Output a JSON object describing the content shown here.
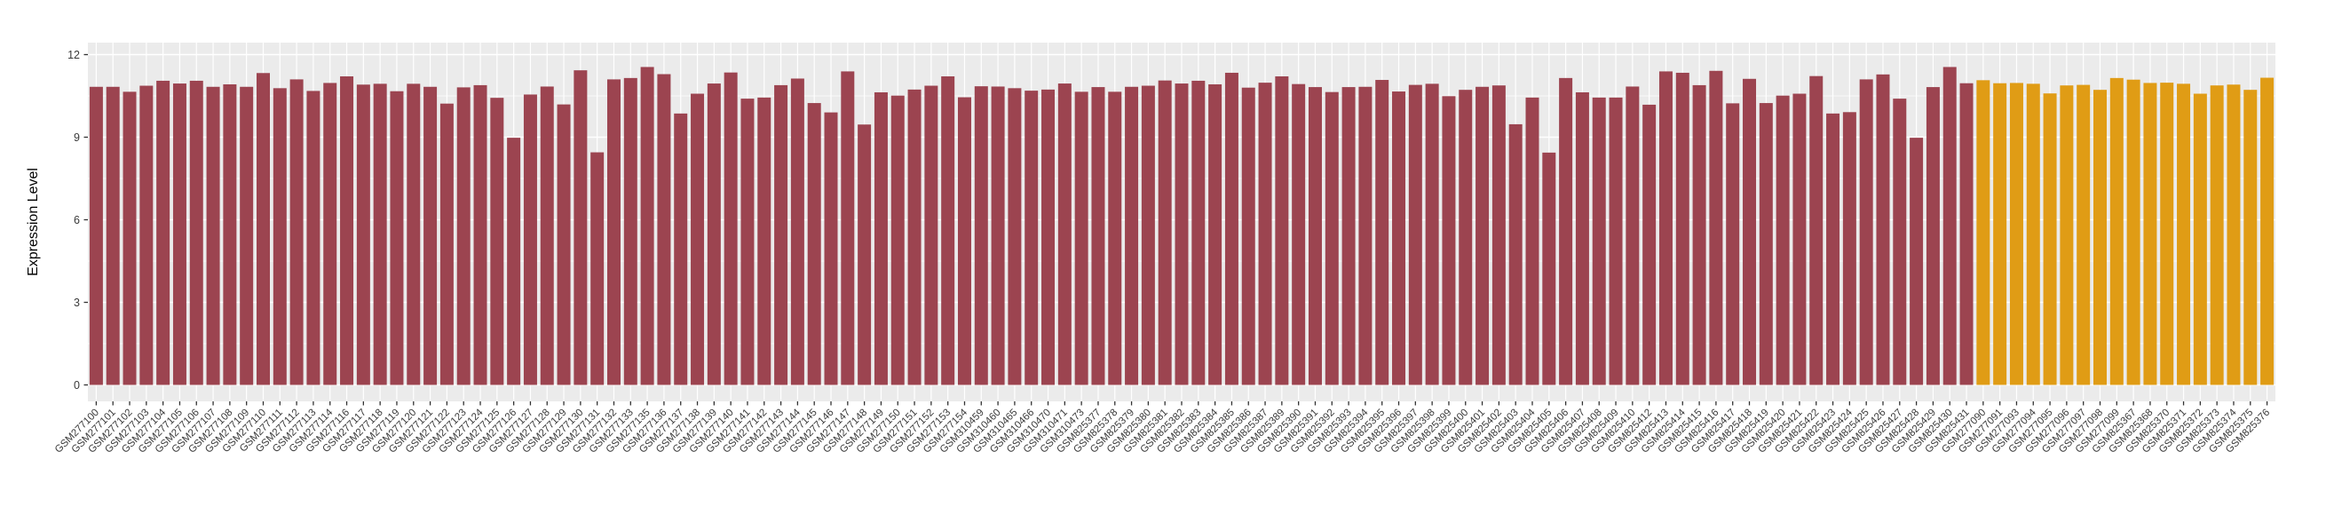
{
  "chart_data": {
    "type": "bar",
    "title": "",
    "ylabel": "Expression Level",
    "xlabel": "",
    "ylim": [
      0,
      12
    ],
    "yticks": [
      0,
      3,
      6,
      9,
      12
    ],
    "yticks_minor": [
      1.5,
      4.5,
      7.5,
      10.5
    ],
    "grid": "on",
    "legend": "none",
    "panel_background": "#EBEBEB",
    "gridline_color": "#FFFFFF",
    "tick_color": "#333333",
    "axis_text_color": "#3a3a3a",
    "groups": [
      {
        "name": "group-1",
        "color": "#9C4450",
        "start_index": 0,
        "end_index": 112
      },
      {
        "name": "group-2",
        "color": "#E09C15",
        "start_index": 113,
        "end_index": 130
      }
    ],
    "categories": [
      "GSM277100",
      "GSM277101",
      "GSM277102",
      "GSM277103",
      "GSM277104",
      "GSM277105",
      "GSM277106",
      "GSM277107",
      "GSM277108",
      "GSM277109",
      "GSM277110",
      "GSM277111",
      "GSM277112",
      "GSM277113",
      "GSM277114",
      "GSM277116",
      "GSM277117",
      "GSM277118",
      "GSM277119",
      "GSM277120",
      "GSM277121",
      "GSM277122",
      "GSM277123",
      "GSM277124",
      "GSM277125",
      "GSM277126",
      "GSM277127",
      "GSM277128",
      "GSM277129",
      "GSM277130",
      "GSM277131",
      "GSM277132",
      "GSM277133",
      "GSM277135",
      "GSM277136",
      "GSM277137",
      "GSM277138",
      "GSM277139",
      "GSM277140",
      "GSM277141",
      "GSM277142",
      "GSM277143",
      "GSM277144",
      "GSM277145",
      "GSM277146",
      "GSM277147",
      "GSM277148",
      "GSM277149",
      "GSM277150",
      "GSM277151",
      "GSM277152",
      "GSM277153",
      "GSM277154",
      "GSM310459",
      "GSM310460",
      "GSM310465",
      "GSM310466",
      "GSM310470",
      "GSM310471",
      "GSM310473",
      "GSM825377",
      "GSM825378",
      "GSM825379",
      "GSM825380",
      "GSM825381",
      "GSM825382",
      "GSM825383",
      "GSM825384",
      "GSM825385",
      "GSM825386",
      "GSM825387",
      "GSM825389",
      "GSM825390",
      "GSM825391",
      "GSM825392",
      "GSM825393",
      "GSM825394",
      "GSM825395",
      "GSM825396",
      "GSM825397",
      "GSM825398",
      "GSM825399",
      "GSM825400",
      "GSM825401",
      "GSM825402",
      "GSM825403",
      "GSM825404",
      "GSM825405",
      "GSM825406",
      "GSM825407",
      "GSM825408",
      "GSM825409",
      "GSM825410",
      "GSM825412",
      "GSM825413",
      "GSM825414",
      "GSM825415",
      "GSM825416",
      "GSM825417",
      "GSM825418",
      "GSM825419",
      "GSM825420",
      "GSM825421",
      "GSM825422",
      "GSM825423",
      "GSM825424",
      "GSM825425",
      "GSM825426",
      "GSM825427",
      "GSM825428",
      "GSM825429",
      "GSM825430",
      "GSM825431",
      "GSM277090",
      "GSM277091",
      "GSM277093",
      "GSM277094",
      "GSM277095",
      "GSM277096",
      "GSM277097",
      "GSM277098",
      "GSM277099",
      "GSM825367",
      "GSM825368",
      "GSM825370",
      "GSM825371",
      "GSM825372",
      "GSM825373",
      "GSM825374",
      "GSM825375",
      "GSM825376"
    ],
    "values": [
      10.83,
      10.83,
      10.65,
      10.87,
      11.05,
      10.95,
      11.05,
      10.83,
      10.92,
      10.83,
      11.33,
      10.78,
      11.1,
      10.68,
      10.97,
      11.21,
      10.91,
      10.94,
      10.67,
      10.94,
      10.83,
      10.22,
      10.81,
      10.89,
      10.43,
      8.98,
      10.55,
      10.84,
      10.19,
      11.43,
      8.45,
      11.1,
      11.15,
      11.55,
      11.29,
      9.86,
      10.58,
      10.95,
      11.35,
      10.4,
      10.44,
      10.89,
      11.13,
      10.24,
      9.9,
      11.39,
      9.46,
      10.63,
      10.51,
      10.73,
      10.87,
      11.21,
      10.45,
      10.85,
      10.84,
      10.78,
      10.69,
      10.73,
      10.95,
      10.65,
      10.82,
      10.65,
      10.83,
      10.87,
      11.06,
      10.95,
      11.05,
      10.92,
      11.34,
      10.8,
      10.98,
      11.21,
      10.93,
      10.82,
      10.64,
      10.82,
      10.83,
      11.08,
      10.66,
      10.9,
      10.94,
      10.49,
      10.72,
      10.83,
      10.88,
      9.47,
      10.44,
      8.44,
      11.15,
      10.63,
      10.44,
      10.44,
      10.84,
      10.18,
      11.39,
      11.34,
      10.89,
      11.41,
      10.23,
      11.12,
      10.24,
      10.51,
      10.58,
      11.22,
      9.86,
      9.91,
      11.1,
      11.28,
      10.4,
      8.98,
      10.82,
      11.55,
      10.96,
      11.07,
      10.96,
      10.97,
      10.94,
      10.59,
      10.88,
      10.9,
      10.72,
      11.15,
      11.09,
      10.97,
      10.98,
      10.94,
      10.58,
      10.88,
      10.91,
      10.72,
      11.16
    ]
  }
}
